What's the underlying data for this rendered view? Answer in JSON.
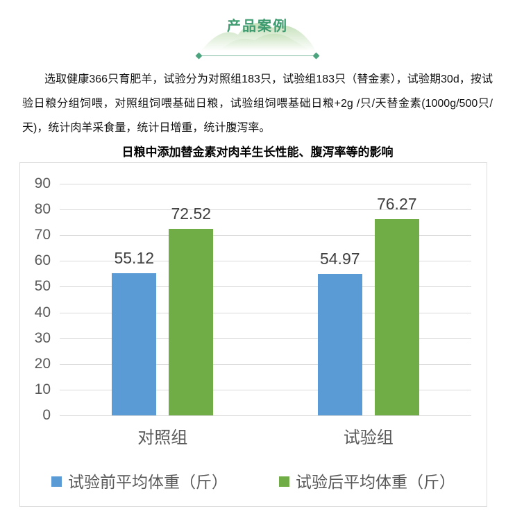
{
  "badge": {
    "label": "产品案例"
  },
  "intro_paragraph": "选取健康366只育肥羊，试验分为对照组183只，试验组183只（替金素），试验期30d，按试验日粮分组饲喂，对照组饲喂基础日粮，试验组饲喂基础日粮+2g /只/天替金素(1000g/500只/天)，统计肉羊采食量，统计日增重，统计腹泻率。",
  "chart_data": {
    "type": "bar",
    "title": "日粮中添加替金素对肉羊生长性能、腹泻率等的影响",
    "categories": [
      "对照组",
      "试验组"
    ],
    "series": [
      {
        "name": "试验前平均体重（斤）",
        "color": "#5B9BD5",
        "values": [
          55.12,
          54.97
        ],
        "labels": [
          "55.12",
          "54.97"
        ]
      },
      {
        "name": "试验后平均体重（斤）",
        "color": "#70AD47",
        "values": [
          72.52,
          76.27
        ],
        "labels": [
          "72.52",
          "76.27"
        ]
      }
    ],
    "xlabel": "",
    "ylabel": "",
    "ylim": [
      0,
      90
    ],
    "yticks": [
      0,
      10,
      20,
      30,
      40,
      50,
      60,
      70,
      80,
      90
    ],
    "grid": true,
    "legend_position": "bottom"
  },
  "colors": {
    "series_blue": "#5B9BD5",
    "series_green": "#70AD47",
    "badge_text": "#3E9B70",
    "badge_line": "#7FB9A2",
    "badge_diamond": "#4CA47E",
    "gridline": "#D9D9D9",
    "axis_text": "#595959",
    "value_label_text": "#404040",
    "chart_border": "#DCDCDC"
  }
}
